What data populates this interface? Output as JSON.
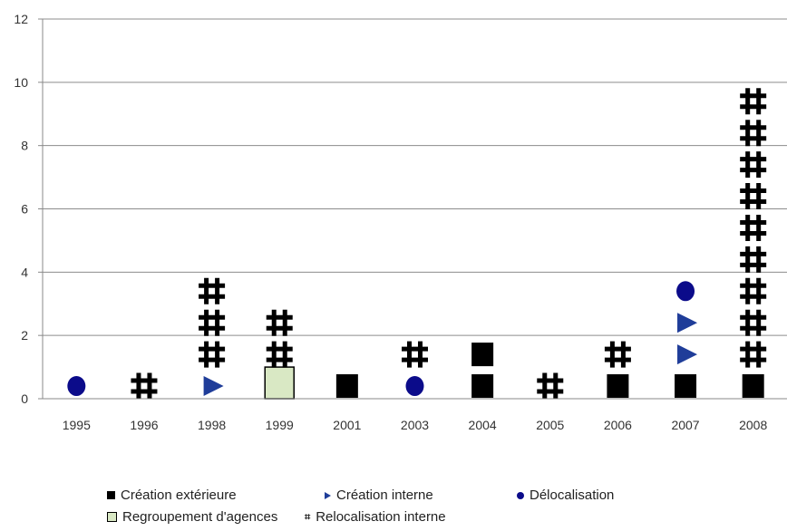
{
  "chart_data": {
    "type": "scatter",
    "title": "",
    "xlabel": "",
    "ylabel": "",
    "ylim": [
      0,
      12
    ],
    "yticks": [
      0,
      2,
      4,
      6,
      8,
      10,
      12
    ],
    "grid": true,
    "legend_position": "bottom",
    "categories": [
      "1995",
      "1996",
      "1998",
      "1999",
      "2001",
      "2003",
      "2004",
      "2005",
      "2006",
      "2007",
      "2008"
    ],
    "series": [
      {
        "name": "Création extérieure",
        "marker": "square",
        "color": "#000000",
        "points": [
          {
            "x": "2001",
            "y": 0.4
          },
          {
            "x": "2004",
            "y": 0.4
          },
          {
            "x": "2004",
            "y": 1.4
          },
          {
            "x": "2006",
            "y": 0.4
          },
          {
            "x": "2007",
            "y": 0.4
          },
          {
            "x": "2008",
            "y": 0.4
          }
        ]
      },
      {
        "name": "Création interne",
        "marker": "triangle",
        "color": "#1f3d99",
        "points": [
          {
            "x": "1998",
            "y": 0.4
          },
          {
            "x": "2007",
            "y": 1.4
          },
          {
            "x": "2007",
            "y": 2.4
          }
        ]
      },
      {
        "name": "Délocalisation",
        "marker": "circle",
        "color": "#0b0b8a",
        "points": [
          {
            "x": "1995",
            "y": 0.4
          },
          {
            "x": "2003",
            "y": 0.4
          },
          {
            "x": "2007",
            "y": 3.4
          }
        ]
      },
      {
        "name": "Regroupement d'agences",
        "marker": "box",
        "color": "#d9e8c4",
        "points": [
          {
            "x": "1999",
            "y": 0.5
          }
        ]
      },
      {
        "name": "Relocalisation interne",
        "marker": "hash",
        "color": "#000000",
        "points": [
          {
            "x": "1996",
            "y": 0.4
          },
          {
            "x": "1998",
            "y": 1.4
          },
          {
            "x": "1998",
            "y": 2.4
          },
          {
            "x": "1998",
            "y": 3.4
          },
          {
            "x": "1999",
            "y": 1.4
          },
          {
            "x": "1999",
            "y": 2.4
          },
          {
            "x": "2003",
            "y": 1.4
          },
          {
            "x": "2005",
            "y": 0.4
          },
          {
            "x": "2006",
            "y": 1.4
          },
          {
            "x": "2008",
            "y": 1.4
          },
          {
            "x": "2008",
            "y": 2.4
          },
          {
            "x": "2008",
            "y": 3.4
          },
          {
            "x": "2008",
            "y": 4.4
          },
          {
            "x": "2008",
            "y": 5.4
          },
          {
            "x": "2008",
            "y": 6.4
          },
          {
            "x": "2008",
            "y": 7.4
          },
          {
            "x": "2008",
            "y": 8.4
          },
          {
            "x": "2008",
            "y": 9.4
          }
        ]
      }
    ]
  }
}
